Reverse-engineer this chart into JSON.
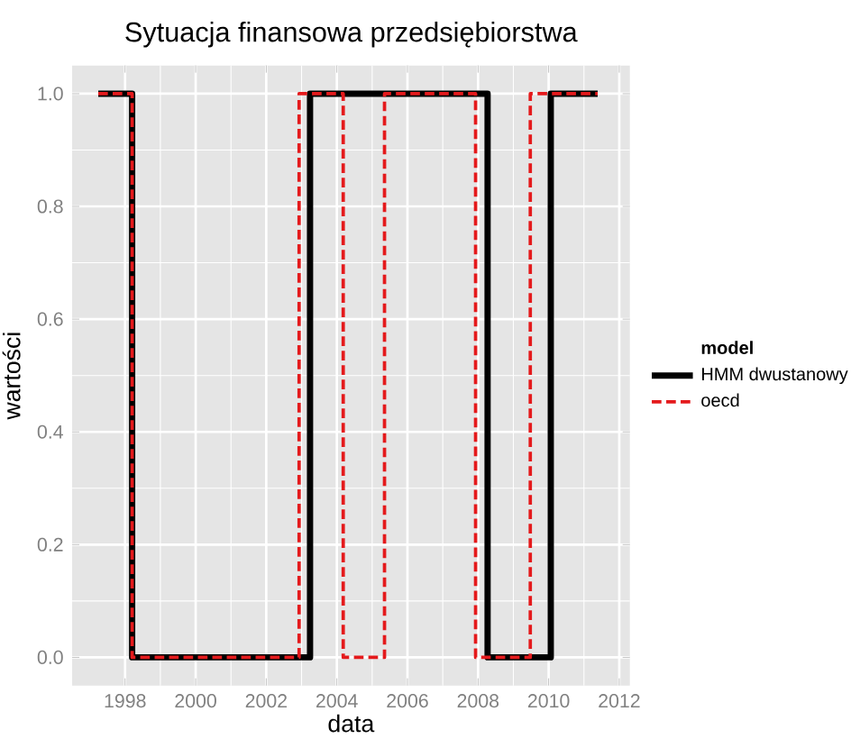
{
  "chart_data": {
    "type": "step",
    "title": "Sytuacja finansowa przedsiębiorstwa",
    "xlabel": "data",
    "ylabel": "wartości",
    "legend_title": "model",
    "xlim": [
      1996.5,
      2012.3
    ],
    "ylim": [
      -0.05,
      1.05
    ],
    "xticks": [
      1998,
      2000,
      2002,
      2004,
      2006,
      2008,
      2010,
      2012
    ],
    "yticks": [
      {
        "value": 0,
        "label": "0.0"
      },
      {
        "value": 0.2,
        "label": "0.2"
      },
      {
        "value": 0.4,
        "label": "0.4"
      },
      {
        "value": 0.6,
        "label": "0.6"
      },
      {
        "value": 0.8,
        "label": "0.8"
      },
      {
        "value": 1,
        "label": "1.0"
      }
    ],
    "grid": true,
    "legend": "right",
    "series": [
      {
        "name": "HMM dwustanowy",
        "color": "#000000",
        "line_style": "solid",
        "x": [
          1997.24,
          1998.2,
          2003.24,
          2008.27,
          2010.06,
          2011.39
        ],
        "values": [
          1,
          0,
          1,
          0,
          1,
          1
        ]
      },
      {
        "name": "oecd",
        "color": "#e41a1c",
        "line_style": "dashed",
        "x": [
          1997.24,
          1998.2,
          2002.93,
          2004.18,
          2005.35,
          2007.93,
          2009.48,
          2011.39
        ],
        "values": [
          1,
          0,
          1,
          0,
          1,
          0,
          1,
          1
        ]
      }
    ]
  }
}
